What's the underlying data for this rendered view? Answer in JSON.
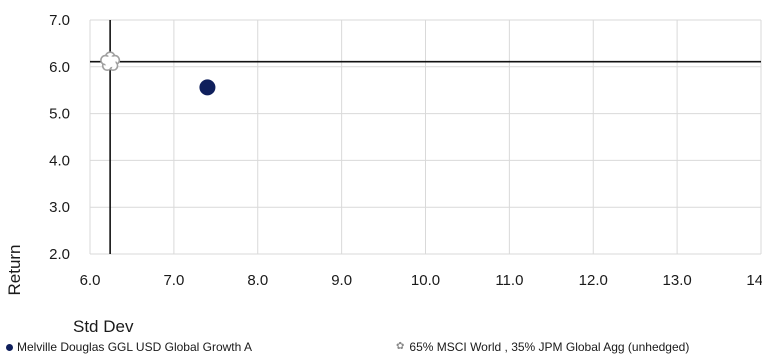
{
  "chart_data": {
    "type": "scatter",
    "xlabel": "Std Dev",
    "ylabel": "Return",
    "xlim": [
      6.0,
      14.0
    ],
    "ylim": [
      2.0,
      7.0
    ],
    "x_ticks": [
      "6.0",
      "7.0",
      "8.0",
      "9.0",
      "10.0",
      "11.0",
      "12.0",
      "13.0",
      "14.0"
    ],
    "y_ticks": [
      "7.0",
      "6.0",
      "5.0",
      "4.0",
      "3.0",
      "2.0"
    ],
    "grid": true,
    "legend_position": "bottom",
    "series": [
      {
        "name": "Melville Douglas GGL USD Global Growth A",
        "marker": "circle",
        "color": "#0f1f5c",
        "points": [
          {
            "x": 7.4,
            "y": 5.56
          }
        ]
      },
      {
        "name": "65% MSCI World , 35% JPM Global Agg (unhedged)",
        "marker": "flower",
        "color": "#a0a0a0",
        "points": [
          {
            "x": 6.24,
            "y": 6.11
          }
        ]
      }
    ],
    "reference_lines": {
      "vertical_x": 6.24,
      "horizontal_y": 6.11
    }
  }
}
